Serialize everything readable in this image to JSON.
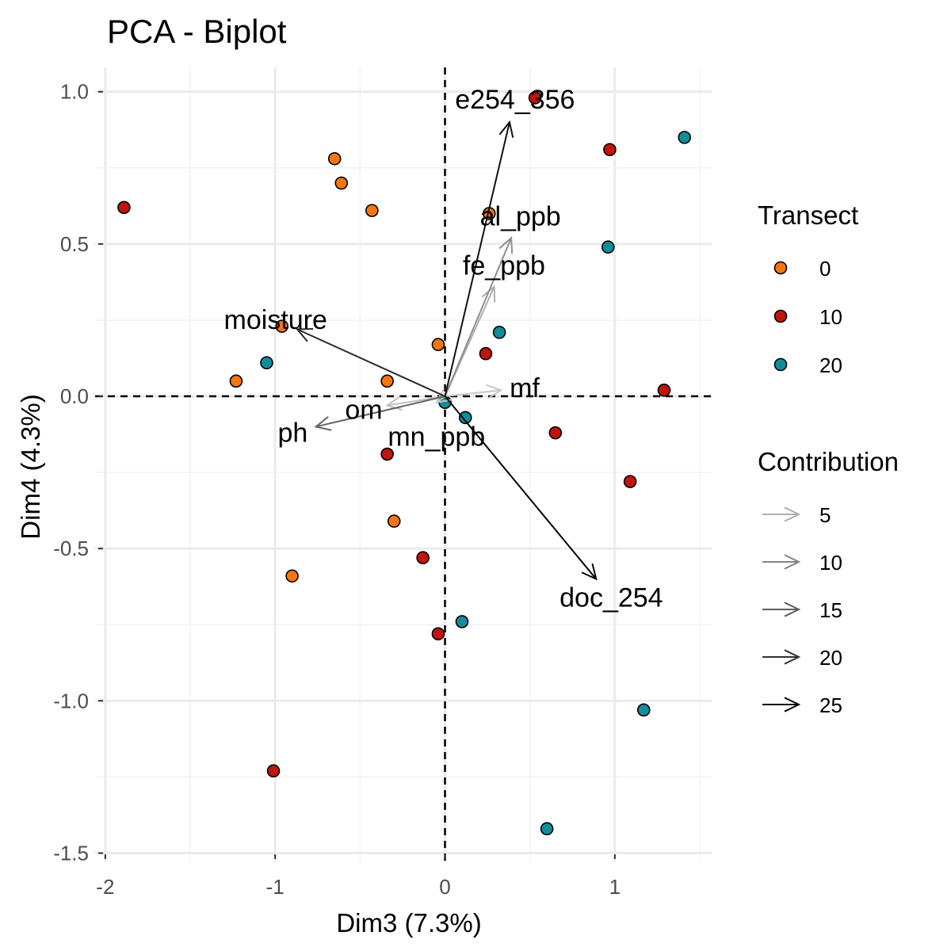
{
  "chart_data": {
    "type": "scatter",
    "title": "PCA - Biplot",
    "xlabel": "Dim3 (7.3%)",
    "ylabel": "Dim4 (4.3%)",
    "xlim": [
      -2.06,
      1.57
    ],
    "ylim": [
      -1.53,
      1.08
    ],
    "x_ticks": [
      -2,
      -1,
      0,
      1
    ],
    "x_tick_labels": [
      "-2",
      "-1",
      "0",
      "1"
    ],
    "y_ticks": [
      1.0,
      0.5,
      0.0,
      -0.5,
      -1.0,
      -1.5
    ],
    "y_tick_labels": [
      "1.0",
      "0.5",
      "0.0",
      "-0.5",
      "-1.0",
      "-1.5"
    ],
    "grid": true,
    "legend_placement": "right",
    "colors": {
      "0": "#f5760f",
      "10": "#c2130d",
      "20": "#128c9b"
    },
    "series": [
      {
        "name": "0",
        "color": "#f5760f",
        "points": [
          {
            "x": -0.65,
            "y": 0.78
          },
          {
            "x": -0.61,
            "y": 0.7
          },
          {
            "x": -0.43,
            "y": 0.61
          },
          {
            "x": -0.96,
            "y": 0.23
          },
          {
            "x": -0.04,
            "y": 0.17
          },
          {
            "x": -1.23,
            "y": 0.05
          },
          {
            "x": -0.34,
            "y": 0.05
          },
          {
            "x": -0.3,
            "y": -0.41
          },
          {
            "x": -0.9,
            "y": -0.59
          },
          {
            "x": 0.26,
            "y": 0.6
          }
        ]
      },
      {
        "name": "10",
        "color": "#c2130d",
        "points": [
          {
            "x": 0.53,
            "y": 0.98
          },
          {
            "x": 0.97,
            "y": 0.81
          },
          {
            "x": -1.89,
            "y": 0.62
          },
          {
            "x": 0.24,
            "y": 0.14
          },
          {
            "x": 1.29,
            "y": 0.02
          },
          {
            "x": 0.65,
            "y": -0.12
          },
          {
            "x": -0.34,
            "y": -0.19
          },
          {
            "x": 1.09,
            "y": -0.28
          },
          {
            "x": -0.13,
            "y": -0.53
          },
          {
            "x": -0.04,
            "y": -0.78
          },
          {
            "x": -1.01,
            "y": -1.23
          }
        ]
      },
      {
        "name": "20",
        "color": "#128c9b",
        "points": [
          {
            "x": 1.41,
            "y": 0.85
          },
          {
            "x": 0.96,
            "y": 0.49
          },
          {
            "x": 0.32,
            "y": 0.21
          },
          {
            "x": -1.05,
            "y": 0.11
          },
          {
            "x": 0.0,
            "y": -0.02
          },
          {
            "x": 0.12,
            "y": -0.07
          },
          {
            "x": 0.1,
            "y": -0.74
          },
          {
            "x": 1.17,
            "y": -1.03
          },
          {
            "x": 0.6,
            "y": -1.42
          }
        ]
      }
    ],
    "variables": [
      {
        "name": "e254_356",
        "x": 0.38,
        "y": 0.9,
        "contribution": 24
      },
      {
        "name": "al_ppb",
        "x": 0.39,
        "y": 0.52,
        "contribution": 9
      },
      {
        "name": "fe_ppb",
        "x": 0.29,
        "y": 0.36,
        "contribution": 5
      },
      {
        "name": "moisture",
        "x": -0.87,
        "y": 0.22,
        "contribution": 21
      },
      {
        "name": "om",
        "x": -0.34,
        "y": -0.03,
        "contribution": 3
      },
      {
        "name": "mf",
        "x": 0.33,
        "y": 0.02,
        "contribution": 2
      },
      {
        "name": "ph",
        "x": -0.76,
        "y": -0.1,
        "contribution": 14
      },
      {
        "name": "mn_ppb",
        "x": -0.05,
        "y": -0.02,
        "contribution": 2
      },
      {
        "name": "doc_254",
        "x": 0.89,
        "y": -0.6,
        "contribution": 26
      }
    ],
    "legend_transect": {
      "title": "Transect",
      "entries": [
        "0",
        "10",
        "20"
      ]
    },
    "legend_contribution": {
      "title": "Contribution",
      "entries": [
        {
          "label": "5",
          "value": 5
        },
        {
          "label": "10",
          "value": 10
        },
        {
          "label": "15",
          "value": 15
        },
        {
          "label": "20",
          "value": 20
        },
        {
          "label": "25",
          "value": 25
        }
      ]
    }
  }
}
